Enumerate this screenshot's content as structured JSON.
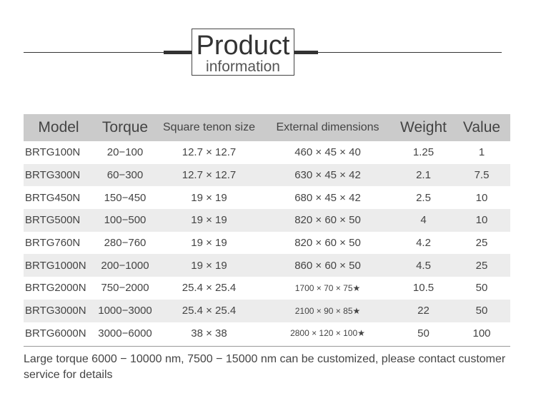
{
  "title": {
    "main": "Product",
    "sub": "information"
  },
  "table": {
    "headers": [
      "Model",
      "Torque",
      "Square tenon size",
      "External dimensions",
      "Weight",
      "Value"
    ],
    "rows": [
      [
        "BRTG100N",
        "20−100",
        "12.7 × 12.7",
        "460 × 45 × 40",
        "1.25",
        "1"
      ],
      [
        "BRTG300N",
        "60−300",
        "12.7 × 12.7",
        "630 × 45 × 42",
        "2.1",
        "7.5"
      ],
      [
        "BRTG450N",
        "150−450",
        "19 × 19",
        "680 × 45 × 42",
        "2.5",
        "10"
      ],
      [
        "BRTG500N",
        "100−500",
        "19 × 19",
        "820 × 60 × 50",
        "4",
        "10"
      ],
      [
        "BRTG760N",
        "280−760",
        "19 × 19",
        "820 × 60 × 50",
        "4.2",
        "25"
      ],
      [
        "BRTG1000N",
        "200−1000",
        "19 × 19",
        "860 × 60 × 50",
        "4.5",
        "25"
      ],
      [
        "BRTG2000N",
        "750−2000",
        "25.4 × 25.4",
        "1700 × 70 × 75★",
        "10.5",
        "50"
      ],
      [
        "BRTG3000N",
        "1000−3000",
        "25.4 × 25.4",
        "2100 × 90 × 85★",
        "22",
        "50"
      ],
      [
        "BRTG6000N",
        "3000−6000",
        "38 × 38",
        "2800 × 120 × 100★",
        "50",
        "100"
      ]
    ]
  },
  "footnote": "Large torque 6000 − 10000 nm, 7500 − 15000 nm can be customized, please contact customer service for details"
}
